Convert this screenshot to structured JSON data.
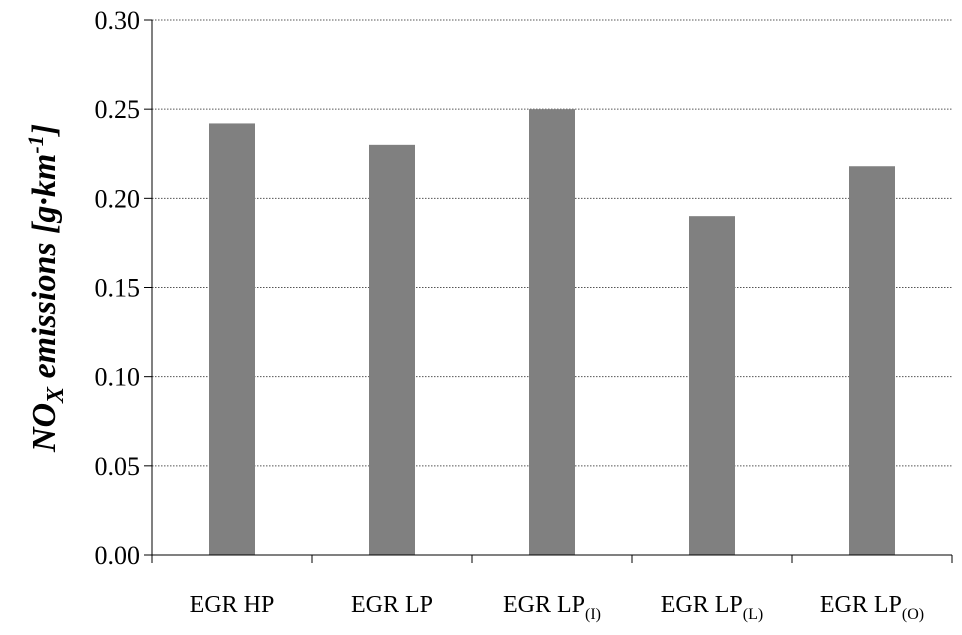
{
  "chart_data": {
    "type": "bar",
    "categories": [
      {
        "base": "EGR HP",
        "sub": ""
      },
      {
        "base": "EGR LP",
        "sub": ""
      },
      {
        "base": "EGR LP",
        "sub": "(I)"
      },
      {
        "base": "EGR LP",
        "sub": "(L)"
      },
      {
        "base": "EGR LP",
        "sub": "(O)"
      }
    ],
    "values": [
      0.242,
      0.23,
      0.25,
      0.19,
      0.218
    ],
    "ylabel": {
      "main": "NO",
      "sub": "X",
      "rest": " emissions [g·km",
      "sup": "-1",
      "end": "]"
    },
    "ylim": [
      0,
      0.3
    ],
    "yticks": [
      "0.00",
      "0.05",
      "0.10",
      "0.15",
      "0.20",
      "0.25",
      "0.30"
    ],
    "ytick_values": [
      0,
      0.05,
      0.1,
      0.15,
      0.2,
      0.25,
      0.3
    ],
    "grid": true,
    "bar_color": "#808080"
  }
}
